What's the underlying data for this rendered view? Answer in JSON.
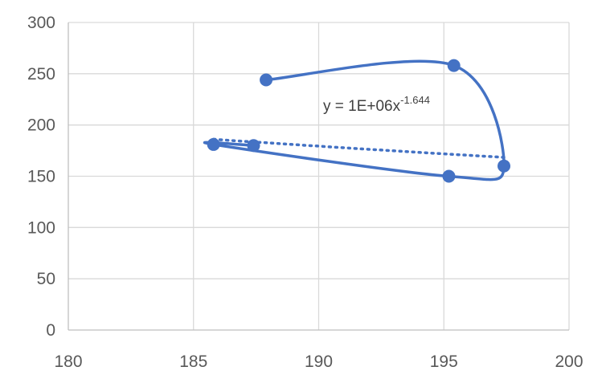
{
  "chart_data": {
    "type": "scatter",
    "style": "smooth-lines-with-markers",
    "series": [
      {
        "points": [
          {
            "x": 187.9,
            "y": 244
          },
          {
            "x": 195.4,
            "y": 258
          },
          {
            "x": 197.4,
            "y": 160
          },
          {
            "x": 195.2,
            "y": 150
          },
          {
            "x": 185.8,
            "y": 181
          },
          {
            "x": 187.4,
            "y": 180
          }
        ],
        "color": "#4472C4"
      }
    ],
    "trendline": {
      "type": "power",
      "equation_prefix": "y = 1E+06x",
      "equation_exponent": "-1.644",
      "coefficient": 1000000,
      "exponent": -1.644,
      "style": "dotted",
      "color": "#4472C4"
    },
    "xlim": [
      180,
      200
    ],
    "ylim": [
      0,
      300
    ],
    "xticks": [
      "180",
      "185",
      "190",
      "195",
      "200"
    ],
    "yticks": [
      "0",
      "50",
      "100",
      "150",
      "200",
      "250",
      "300"
    ],
    "grid": true,
    "legend": "none"
  }
}
